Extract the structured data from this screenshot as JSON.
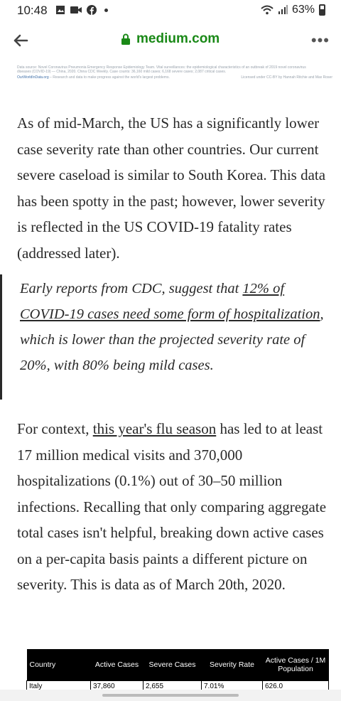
{
  "status": {
    "time": "10:48",
    "battery": "63%"
  },
  "browser": {
    "url": "medium.com"
  },
  "chart_footer": {
    "source": "Data source: Novel Coronavirus Pneumonia Emergency Response Epidemiology Team. Vital surveillances: the epidemiological characteristics of an outbreak of 2019 novel coronavirus diseases (COVID-19) — China, 2020. China CDC Weekly. Case counts: 36,160 mild cases; 6,168 severe cases; 2,087 critical cases.",
    "owid": "OurWorldInData.org",
    "owid_rest": " – Research and data to make progress against the world's largest problems.",
    "license": "Licensed under CC-BY by Hannah Ritchie and Max Roser"
  },
  "article": {
    "p1": "As of mid-March, the US has a significantly lower case severity rate than other countries. Our current severe caseload is similar to South Korea. This data has been spotty in the past; however, lower severity is reflected in the US COVID-19 fatality rates (addressed later).",
    "quote_part1": "Early reports from CDC, suggest that ",
    "quote_link": "12% of COVID-19 cases need some form of hospitalization",
    "quote_part2": ", which is lower than the projected severity rate of 20%, with 80% being mild cases.",
    "p2_part1": "For context, ",
    "p2_link": "this year's flu season",
    "p2_part2": " has led to at least 17 million medical visits and 370,000 hospitalizations (0.1%) out of 30–50 million infections. Recalling that only comparing aggregate total cases isn't helpful, breaking down active cases on a per-capita basis paints a different picture on severity. This is data as of March 20th, 2020."
  },
  "table": {
    "headers": [
      "Country",
      "Active Cases",
      "Severe Cases",
      "Severity Rate",
      "Active Cases / 1M Population"
    ],
    "rows": [
      [
        "Italy",
        "37,860",
        "2,655",
        "7.01%",
        "626.0"
      ]
    ]
  }
}
